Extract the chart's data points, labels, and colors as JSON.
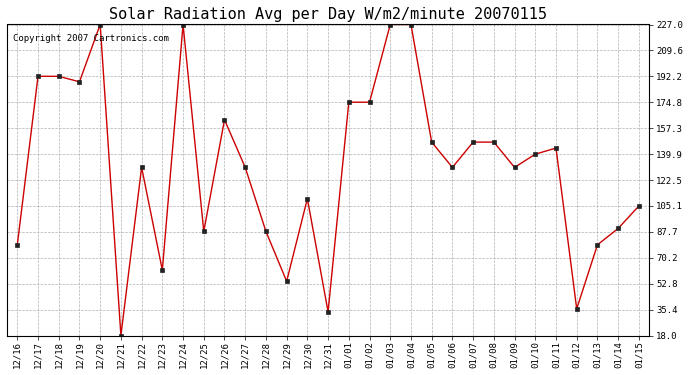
{
  "title": "Solar Radiation Avg per Day W/m2/minute 20070115",
  "copyright_text": "Copyright 2007 Cartronics.com",
  "dates": [
    "12/16",
    "12/17",
    "12/18",
    "12/19",
    "12/20",
    "12/21",
    "12/22",
    "12/23",
    "12/24",
    "12/25",
    "12/26",
    "12/27",
    "12/28",
    "12/29",
    "12/30",
    "12/31",
    "01/01",
    "01/02",
    "01/03",
    "01/04",
    "01/05",
    "01/06",
    "01/07",
    "01/08",
    "01/09",
    "01/10",
    "01/11",
    "01/12",
    "01/13",
    "01/14",
    "01/15"
  ],
  "values": [
    79.0,
    192.2,
    192.2,
    188.5,
    227.0,
    18.0,
    131.0,
    62.0,
    227.0,
    88.0,
    163.0,
    131.0,
    88.0,
    54.5,
    110.0,
    34.0,
    174.8,
    174.8,
    227.0,
    227.0,
    148.0,
    131.0,
    148.0,
    148.0,
    131.0,
    139.9,
    144.0,
    36.0,
    79.0,
    90.0,
    105.1
  ],
  "line_color": "#cc0000",
  "marker": "s",
  "marker_size": 2.5,
  "bg_color": "#ffffff",
  "grid_color": "#b0b0b0",
  "yticks": [
    18.0,
    35.4,
    52.8,
    70.2,
    87.7,
    105.1,
    122.5,
    139.9,
    157.3,
    174.8,
    192.2,
    209.6,
    227.0
  ],
  "ylim": [
    18.0,
    227.0
  ],
  "title_fontsize": 11,
  "tick_fontsize": 6.5,
  "copyright_fontsize": 6.5,
  "fig_width": 6.9,
  "fig_height": 3.75,
  "fig_dpi": 100
}
